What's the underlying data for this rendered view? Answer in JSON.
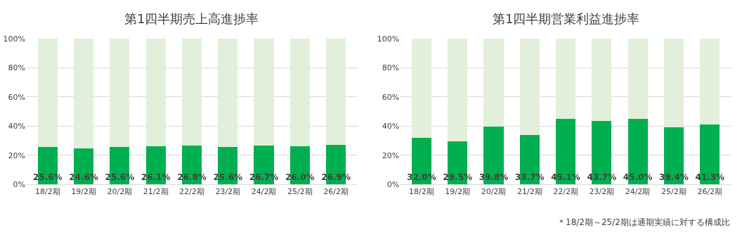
{
  "chart_data": [
    {
      "type": "bar",
      "title": "第1四半期売上高進捗率",
      "stacked": true,
      "grid": "y",
      "categories": [
        "18/2期",
        "19/2期",
        "20/2期",
        "21/2期",
        "22/2期",
        "23/2期",
        "24/2期",
        "25/2期",
        "26/2期"
      ],
      "series": [
        {
          "color": "#00b050",
          "values": [
            25.6,
            24.6,
            25.6,
            26.1,
            26.8,
            25.6,
            26.7,
            26.0,
            26.9
          ],
          "value_labels": [
            "25.6%",
            "24.6%",
            "25.6%",
            "26.1%",
            "26.8%",
            "25.6%",
            "26.7%",
            "26.0%",
            "26.9%"
          ]
        },
        {
          "color": "#e2efda",
          "values": [
            74.4,
            75.4,
            74.4,
            73.9,
            73.2,
            74.4,
            73.3,
            74.0,
            73.1
          ]
        }
      ],
      "ylim": [
        0,
        100
      ],
      "yticks": [
        {
          "value": 0,
          "label": "0%"
        },
        {
          "value": 20,
          "label": "20%"
        },
        {
          "value": 40,
          "label": "40%"
        },
        {
          "value": 60,
          "label": "60%"
        },
        {
          "value": 80,
          "label": "80%"
        },
        {
          "value": 100,
          "label": "100%"
        }
      ]
    },
    {
      "type": "bar",
      "title": "第1四半期営業利益進捗率",
      "stacked": true,
      "grid": "y",
      "categories": [
        "18/2期",
        "19/2期",
        "20/2期",
        "21/2期",
        "22/2期",
        "23/2期",
        "24/2期",
        "25/2期",
        "26/2期"
      ],
      "series": [
        {
          "color": "#00b050",
          "values": [
            32.0,
            29.5,
            39.8,
            33.7,
            45.1,
            43.7,
            45.0,
            39.4,
            41.3
          ],
          "value_labels": [
            "32.0%",
            "29.5%",
            "39.8%",
            "33.7%",
            "45.1%",
            "43.7%",
            "45.0%",
            "39.4%",
            "41.3%"
          ]
        },
        {
          "color": "#e2efda",
          "values": [
            68.0,
            70.5,
            60.2,
            66.3,
            54.9,
            56.3,
            55.0,
            60.6,
            58.7
          ]
        }
      ],
      "ylim": [
        0,
        100
      ],
      "yticks": [
        {
          "value": 0,
          "label": "0%"
        },
        {
          "value": 20,
          "label": "20%"
        },
        {
          "value": 40,
          "label": "40%"
        },
        {
          "value": 60,
          "label": "60%"
        },
        {
          "value": 80,
          "label": "80%"
        },
        {
          "value": 100,
          "label": "100%"
        }
      ],
      "annotations": [
        "＊18/2期～25/2期は通期実績に対する構成比"
      ]
    }
  ]
}
